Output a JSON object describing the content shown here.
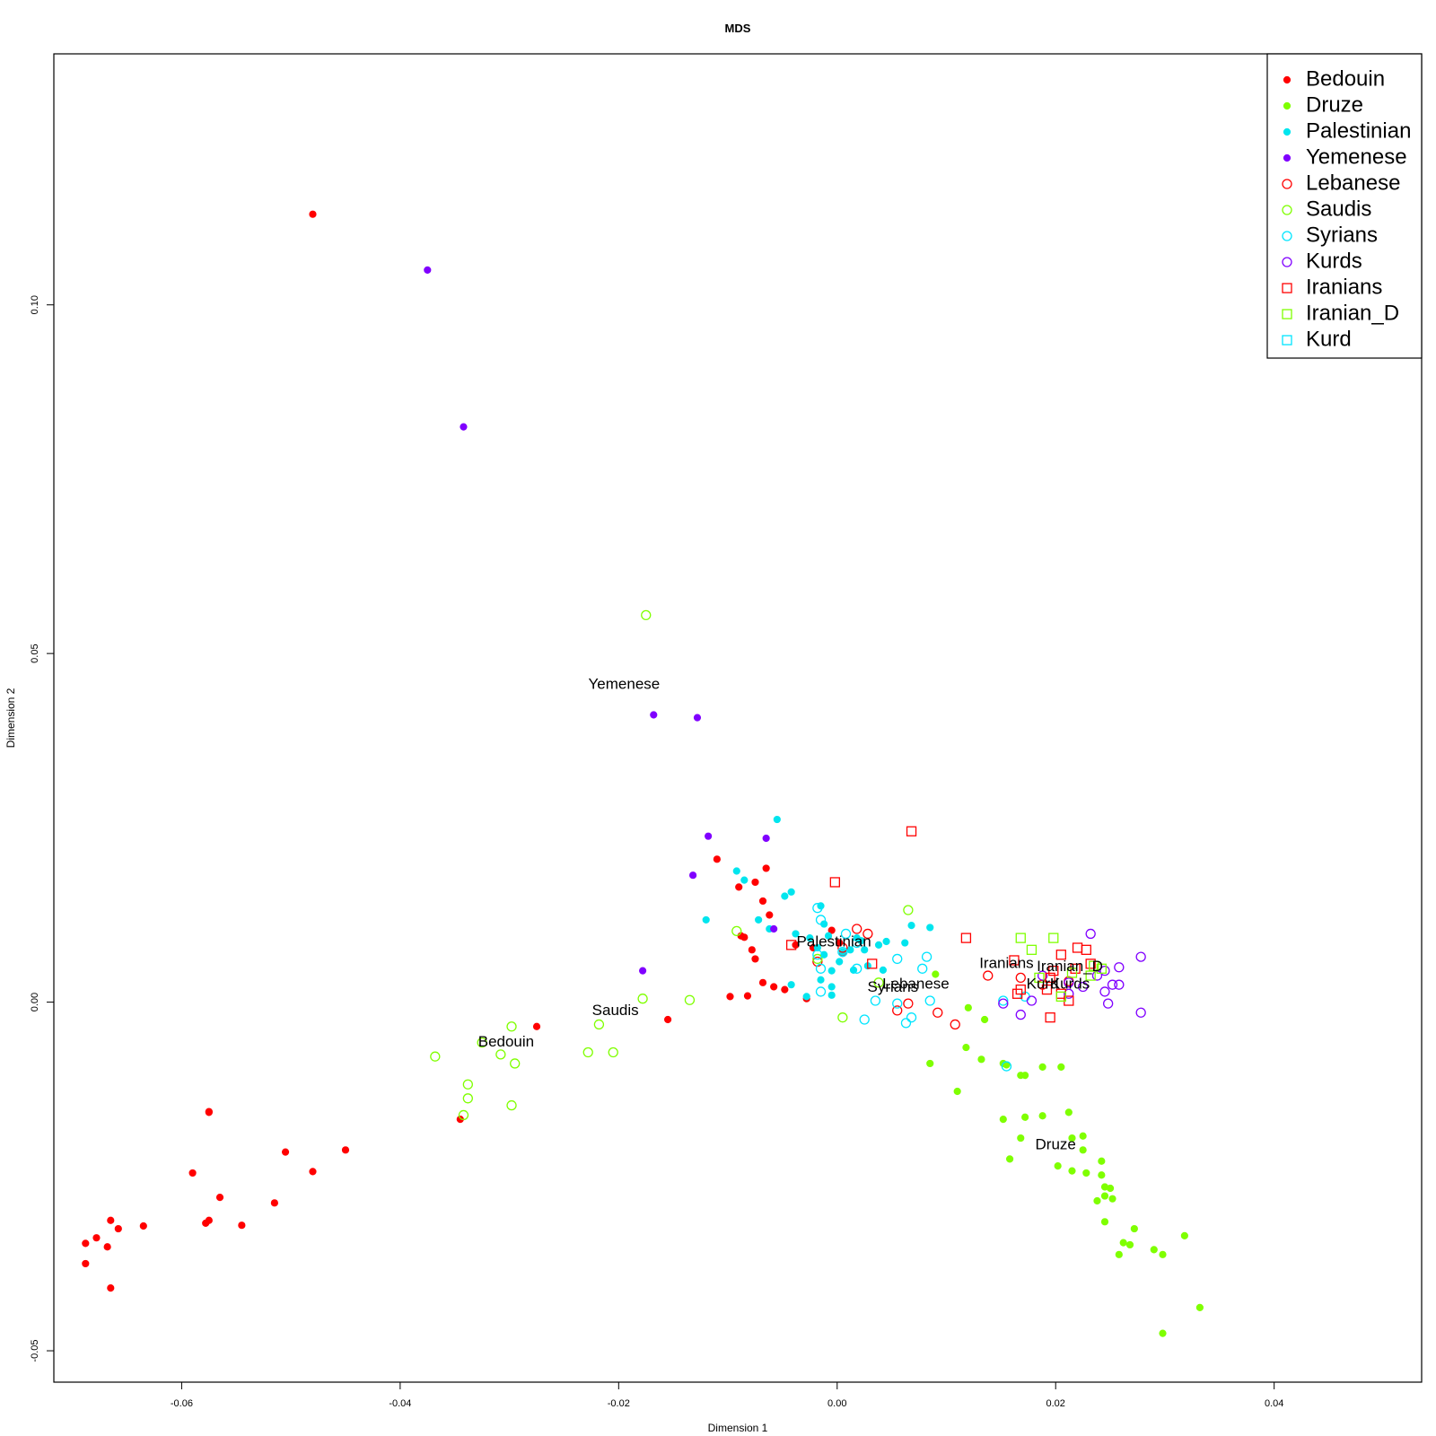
{
  "chart_data": {
    "type": "scatter",
    "title": "MDS",
    "xlabel": "Dimension 1",
    "ylabel": "Dimension 2",
    "xlim": [
      -0.0717,
      0.0535
    ],
    "ylim": [
      -0.0545,
      0.136
    ],
    "xticks": [
      {
        "value": -0.06,
        "label": "-0.06"
      },
      {
        "value": -0.04,
        "label": "-0.04"
      },
      {
        "value": -0.02,
        "label": "-0.02"
      },
      {
        "value": 0.0,
        "label": "0.00"
      },
      {
        "value": 0.02,
        "label": "0.02"
      },
      {
        "value": 0.04,
        "label": "0.04"
      }
    ],
    "yticks": [
      {
        "value": -0.05,
        "label": "-0.05"
      },
      {
        "value": 0.0,
        "label": "0.00"
      },
      {
        "value": 0.05,
        "label": "0.05"
      },
      {
        "value": 0.1,
        "label": "0.10"
      }
    ],
    "grid": false,
    "legend_position": "top-right",
    "series": [
      {
        "name": "Bedouin",
        "marker": "filled-circle",
        "color": "#ff0000",
        "points": [
          [
            -0.048,
            0.113
          ],
          [
            -0.0275,
            -0.0035
          ],
          [
            -0.0345,
            -0.0168
          ],
          [
            -0.0575,
            -0.0158
          ],
          [
            -0.0575,
            -0.0157
          ],
          [
            -0.045,
            -0.0212
          ],
          [
            -0.0505,
            -0.0215
          ],
          [
            -0.048,
            -0.0243
          ],
          [
            -0.059,
            -0.0245
          ],
          [
            -0.0565,
            -0.028
          ],
          [
            -0.0515,
            -0.0288
          ],
          [
            -0.0575,
            -0.0313
          ],
          [
            -0.0578,
            -0.0317
          ],
          [
            -0.0545,
            -0.032
          ],
          [
            -0.0635,
            -0.0321
          ],
          [
            -0.0665,
            -0.0313
          ],
          [
            -0.0658,
            -0.0325
          ],
          [
            -0.0688,
            -0.0346
          ],
          [
            -0.0678,
            -0.0338
          ],
          [
            -0.0668,
            -0.0351
          ],
          [
            -0.0688,
            -0.0375
          ],
          [
            -0.0665,
            -0.041
          ],
          [
            -0.0155,
            -0.0025
          ],
          [
            -0.011,
            0.0205
          ],
          [
            -0.0065,
            0.0192
          ],
          [
            -0.009,
            0.0165
          ],
          [
            -0.0075,
            0.0172
          ],
          [
            -0.0068,
            0.0145
          ],
          [
            -0.0062,
            0.0125
          ],
          [
            -0.0088,
            0.0095
          ],
          [
            -0.0085,
            0.0093
          ],
          [
            -0.0078,
            0.0075
          ],
          [
            -0.0075,
            0.0062
          ],
          [
            -0.0068,
            0.0028
          ],
          [
            -0.0058,
            0.0022
          ],
          [
            -0.0048,
            0.0018
          ],
          [
            -0.0098,
            0.0008
          ],
          [
            -0.0082,
            0.0009
          ],
          [
            -0.0038,
            0.0082
          ],
          [
            -0.0022,
            0.0078
          ],
          [
            -0.0005,
            0.0103
          ],
          [
            0.0002,
            0.0085
          ],
          [
            0.0005,
            0.007
          ],
          [
            -0.0028,
            0.0005
          ]
        ]
      },
      {
        "name": "Druze",
        "marker": "filled-circle",
        "color": "#7fff00",
        "points": [
          [
            0.009,
            0.004
          ],
          [
            0.012,
            -0.0008
          ],
          [
            0.0135,
            -0.0025
          ],
          [
            0.0118,
            -0.0065
          ],
          [
            0.0132,
            -0.0082
          ],
          [
            0.0152,
            -0.0088
          ],
          [
            0.0155,
            -0.009
          ],
          [
            0.0168,
            -0.0105
          ],
          [
            0.0172,
            -0.0105
          ],
          [
            0.0188,
            -0.0093
          ],
          [
            0.0205,
            -0.0093
          ],
          [
            0.0085,
            -0.0088
          ],
          [
            0.011,
            -0.0128
          ],
          [
            0.0152,
            -0.0168
          ],
          [
            0.0172,
            -0.0165
          ],
          [
            0.0188,
            -0.0163
          ],
          [
            0.0212,
            -0.0158
          ],
          [
            0.0168,
            -0.0195
          ],
          [
            0.0215,
            -0.0195
          ],
          [
            0.0225,
            -0.0192
          ],
          [
            0.0225,
            -0.0212
          ],
          [
            0.0158,
            -0.0225
          ],
          [
            0.0202,
            -0.0235
          ],
          [
            0.0215,
            -0.0242
          ],
          [
            0.0228,
            -0.0245
          ],
          [
            0.0242,
            -0.0228
          ],
          [
            0.0242,
            -0.0248
          ],
          [
            0.0245,
            -0.0265
          ],
          [
            0.025,
            -0.0267
          ],
          [
            0.0245,
            -0.0278
          ],
          [
            0.0252,
            -0.0282
          ],
          [
            0.0238,
            -0.0285
          ],
          [
            0.0245,
            -0.0315
          ],
          [
            0.0272,
            -0.0325
          ],
          [
            0.0318,
            -0.0335
          ],
          [
            0.0262,
            -0.0345
          ],
          [
            0.0268,
            -0.0348
          ],
          [
            0.0258,
            -0.0362
          ],
          [
            0.029,
            -0.0355
          ],
          [
            0.0298,
            -0.0362
          ],
          [
            0.0332,
            -0.0438
          ],
          [
            0.0298,
            -0.0475
          ]
        ]
      },
      {
        "name": "Palestinian",
        "marker": "filled-circle",
        "color": "#00e5ee",
        "points": [
          [
            -0.0055,
            0.0262
          ],
          [
            -0.0092,
            0.0188
          ],
          [
            -0.0085,
            0.0175
          ],
          [
            -0.0048,
            0.0152
          ],
          [
            -0.0042,
            0.0158
          ],
          [
            -0.0072,
            0.0118
          ],
          [
            -0.012,
            0.0118
          ],
          [
            -0.0062,
            0.0105
          ],
          [
            -0.0038,
            0.0098
          ],
          [
            -0.0015,
            0.0138
          ],
          [
            -0.0012,
            0.0112
          ],
          [
            -0.0008,
            0.0095
          ],
          [
            -0.0025,
            0.0092
          ],
          [
            -0.0018,
            0.0078
          ],
          [
            -0.0012,
            0.0068
          ],
          [
            0.0005,
            0.0072
          ],
          [
            0.0012,
            0.0075
          ],
          [
            0.0025,
            0.0075
          ],
          [
            0.0038,
            0.0082
          ],
          [
            0.0045,
            0.0087
          ],
          [
            0.0018,
            0.0092
          ],
          [
            0.0022,
            0.0088
          ],
          [
            0.0062,
            0.0085
          ],
          [
            0.0068,
            0.011
          ],
          [
            0.0085,
            0.0107
          ],
          [
            0.0002,
            0.0058
          ],
          [
            -0.0005,
            0.0045
          ],
          [
            0.0015,
            0.0046
          ],
          [
            0.0028,
            0.0052
          ],
          [
            0.0042,
            0.0046
          ],
          [
            -0.0015,
            0.0032
          ],
          [
            -0.0005,
            0.0022
          ],
          [
            -0.0005,
            0.001
          ],
          [
            -0.0028,
            0.0008
          ],
          [
            -0.0042,
            0.0025
          ]
        ]
      },
      {
        "name": "Yemenese",
        "marker": "filled-circle",
        "color": "#8000ff",
        "points": [
          [
            -0.0375,
            0.105
          ],
          [
            -0.0342,
            0.0825
          ],
          [
            -0.0168,
            0.0412
          ],
          [
            -0.0128,
            0.0408
          ],
          [
            -0.0118,
            0.0238
          ],
          [
            -0.0065,
            0.0235
          ],
          [
            -0.0132,
            0.0182
          ],
          [
            -0.0058,
            0.0105
          ],
          [
            -0.0178,
            0.0045
          ]
        ]
      },
      {
        "name": "Lebanese",
        "marker": "open-circle",
        "color": "#ff0000",
        "points": [
          [
            0.0018,
            0.0105
          ],
          [
            0.0028,
            0.0098
          ],
          [
            0.0005,
            0.0078
          ],
          [
            -0.0018,
            0.0058
          ],
          [
            0.0138,
            0.0038
          ],
          [
            0.0168,
            0.0035
          ],
          [
            0.0188,
            0.0025
          ],
          [
            0.0212,
            0.003
          ],
          [
            0.0065,
            -0.0002
          ],
          [
            0.0055,
            -0.0012
          ],
          [
            0.0092,
            -0.0015
          ],
          [
            0.0108,
            -0.0032
          ]
        ]
      },
      {
        "name": "Saudis",
        "marker": "open-circle",
        "color": "#7fff00",
        "points": [
          [
            -0.0175,
            0.0555
          ],
          [
            -0.0092,
            0.0102
          ],
          [
            0.0065,
            0.0132
          ],
          [
            -0.0018,
            0.0062
          ],
          [
            0.0038,
            0.0028
          ],
          [
            -0.0178,
            0.0005
          ],
          [
            -0.0135,
            0.0003
          ],
          [
            0.0005,
            -0.0022
          ],
          [
            -0.0218,
            -0.0032
          ],
          [
            -0.0298,
            -0.0035
          ],
          [
            -0.0295,
            -0.0088
          ],
          [
            -0.0228,
            -0.0072
          ],
          [
            -0.0205,
            -0.0072
          ],
          [
            -0.0308,
            -0.0075
          ],
          [
            -0.0325,
            -0.0058
          ],
          [
            -0.0368,
            -0.0078
          ],
          [
            -0.0338,
            -0.0118
          ],
          [
            -0.0338,
            -0.0138
          ],
          [
            -0.0298,
            -0.0148
          ],
          [
            -0.0342,
            -0.0162
          ]
        ]
      },
      {
        "name": "Syrians",
        "marker": "open-circle",
        "color": "#00e5ff",
        "points": [
          [
            -0.0018,
            0.0135
          ],
          [
            -0.0015,
            0.0118
          ],
          [
            0.0008,
            0.0098
          ],
          [
            0.0018,
            0.0085
          ],
          [
            0.0005,
            0.0072
          ],
          [
            -0.0018,
            0.0068
          ],
          [
            -0.0015,
            0.0048
          ],
          [
            0.0018,
            0.0048
          ],
          [
            0.0055,
            0.0062
          ],
          [
            0.0082,
            0.0065
          ],
          [
            0.0078,
            0.0048
          ],
          [
            -0.0015,
            0.0015
          ],
          [
            0.0035,
            0.0002
          ],
          [
            0.0055,
            -0.0002
          ],
          [
            0.0085,
            0.0002
          ],
          [
            0.0068,
            -0.0022
          ],
          [
            0.0025,
            -0.0025
          ],
          [
            0.0063,
            -0.003
          ],
          [
            0.0155,
            -0.0092
          ],
          [
            0.0152,
            0.0002
          ],
          [
            0.0172,
            0.0008
          ]
        ]
      },
      {
        "name": "Kurds",
        "marker": "open-circle",
        "color": "#8000ff",
        "points": [
          [
            0.0232,
            0.0098
          ],
          [
            0.0278,
            0.0065
          ],
          [
            0.0258,
            0.005
          ],
          [
            0.0245,
            0.0045
          ],
          [
            0.0238,
            0.0038
          ],
          [
            0.0188,
            0.0038
          ],
          [
            0.0212,
            0.0028
          ],
          [
            0.0225,
            0.0022
          ],
          [
            0.0252,
            0.0025
          ],
          [
            0.0258,
            0.0025
          ],
          [
            0.0245,
            0.0015
          ],
          [
            0.0212,
            0.0012
          ],
          [
            0.0178,
            0.0002
          ],
          [
            0.0152,
            -0.0002
          ],
          [
            0.0248,
            -0.0002
          ],
          [
            0.0168,
            -0.0018
          ],
          [
            0.0278,
            -0.0015
          ]
        ]
      },
      {
        "name": "Iranians",
        "marker": "open-square",
        "color": "#ff0000",
        "points": [
          [
            0.0068,
            0.0245
          ],
          [
            -0.0002,
            0.0172
          ],
          [
            0.0118,
            0.0092
          ],
          [
            -0.0042,
            0.0082
          ],
          [
            0.0032,
            0.0055
          ],
          [
            0.0162,
            0.006
          ],
          [
            0.0205,
            0.0068
          ],
          [
            0.022,
            0.0078
          ],
          [
            0.0228,
            0.0075
          ],
          [
            0.0198,
            0.0045
          ],
          [
            0.0195,
            0.0035
          ],
          [
            0.0218,
            0.0048
          ],
          [
            0.0232,
            0.0055
          ],
          [
            0.0168,
            0.0018
          ],
          [
            0.0192,
            0.0018
          ],
          [
            0.0205,
            0.0012
          ],
          [
            0.0165,
            0.0012
          ],
          [
            0.0212,
            0.0002
          ],
          [
            0.0195,
            -0.0022
          ]
        ]
      },
      {
        "name": "Iranian_D",
        "marker": "open-square",
        "color": "#7fff00",
        "points": [
          [
            0.0168,
            0.0092
          ],
          [
            0.0198,
            0.0092
          ],
          [
            0.0178,
            0.0075
          ],
          [
            0.0235,
            0.0052
          ],
          [
            0.0242,
            0.0048
          ],
          [
            0.0185,
            0.0035
          ],
          [
            0.0215,
            0.0042
          ],
          [
            0.0232,
            0.0038
          ],
          [
            0.0205,
            0.0008
          ]
        ]
      },
      {
        "name": "Kurd",
        "marker": "open-square",
        "color": "#00e5ff",
        "points": []
      }
    ],
    "annotations": [
      {
        "text": "Yemenese",
        "x": -0.0195,
        "y": 0.0455
      },
      {
        "text": "Palestinian",
        "x": -0.0003,
        "y": 0.0086
      },
      {
        "text": "Lebanese",
        "x": 0.0072,
        "y": 0.0025
      },
      {
        "text": "Syrians",
        "x": 0.0051,
        "y": 0.0021
      },
      {
        "text": "Saudis",
        "x": -0.0203,
        "y": -0.0013
      },
      {
        "text": "Bedouin",
        "x": -0.0303,
        "y": -0.0058
      },
      {
        "text": "Iranians",
        "x": 0.0155,
        "y": 0.0055
      },
      {
        "text": "Iranian_D",
        "x": 0.0213,
        "y": 0.005
      },
      {
        "text": "Kurd",
        "x": 0.0188,
        "y": 0.0025
      },
      {
        "text": "Kurds",
        "x": 0.0213,
        "y": 0.0025
      },
      {
        "text": "Druze",
        "x": 0.02,
        "y": -0.0205
      }
    ]
  }
}
